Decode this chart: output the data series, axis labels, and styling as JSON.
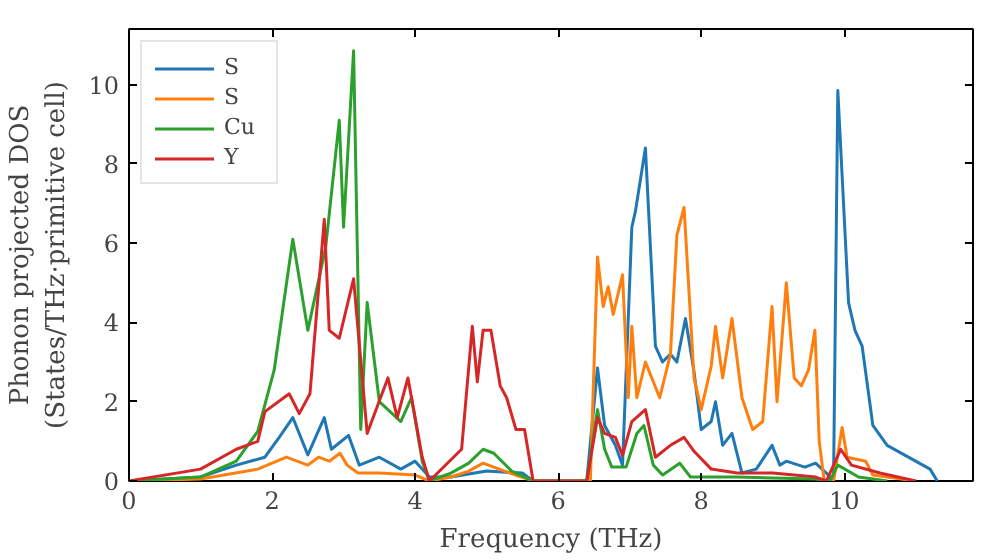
{
  "chart_data": {
    "type": "line",
    "xlabel": "Frequency (THz)",
    "ylabel": "Phonon projected DOS\n(States/THz·primitive cell)",
    "xlim": [
      0,
      11.8
    ],
    "ylim": [
      0,
      11.4
    ],
    "xticks": [
      0,
      2,
      4,
      6,
      8,
      10
    ],
    "yticks": [
      0,
      2,
      4,
      6,
      8,
      10
    ],
    "grid": false,
    "legend": "top left",
    "series": [
      {
        "name": "S",
        "color": "#1f77b4",
        "x": [
          0,
          1,
          1.5,
          1.9,
          2.1,
          2.29,
          2.5,
          2.73,
          2.83,
          3.07,
          3.22,
          3.5,
          3.8,
          4.0,
          4.2,
          4.5,
          5.0,
          5.5,
          5.65,
          6.4,
          6.55,
          6.65,
          6.8,
          6.9,
          7.03,
          7.08,
          7.22,
          7.36,
          7.46,
          7.57,
          7.66,
          7.78,
          7.9,
          8.0,
          8.14,
          8.2,
          8.3,
          8.43,
          8.57,
          8.77,
          8.99,
          9.1,
          9.19,
          9.45,
          9.6,
          9.75,
          9.85,
          9.91,
          10.06,
          10.15,
          10.25,
          10.4,
          10.6,
          11.2,
          11.3
        ],
        "values": [
          0,
          0.1,
          0.4,
          0.6,
          1.1,
          1.6,
          0.66,
          1.6,
          0.8,
          1.15,
          0.4,
          0.6,
          0.3,
          0.5,
          0.1,
          0.1,
          0.25,
          0.2,
          0,
          0,
          2.85,
          1.4,
          0.9,
          0.4,
          6.4,
          6.8,
          8.4,
          3.4,
          3.0,
          3.2,
          3.0,
          4.1,
          2.75,
          1.3,
          1.5,
          2.0,
          0.9,
          1.2,
          0.2,
          0.3,
          0.9,
          0.4,
          0.5,
          0.35,
          0.45,
          0.2,
          0,
          9.85,
          4.5,
          3.8,
          3.4,
          1.4,
          0.9,
          0.3,
          0
        ]
      },
      {
        "name": "S",
        "color": "#ff7f0e",
        "x": [
          0,
          1,
          1.8,
          2.2,
          2.5,
          2.65,
          2.8,
          2.95,
          3.05,
          3.2,
          3.5,
          4.0,
          4.2,
          4.5,
          4.75,
          4.95,
          5.25,
          5.65,
          6.45,
          6.55,
          6.63,
          6.7,
          6.77,
          6.9,
          6.98,
          7.03,
          7.1,
          7.22,
          7.42,
          7.57,
          7.66,
          7.76,
          7.9,
          8.0,
          8.14,
          8.2,
          8.3,
          8.43,
          8.57,
          8.72,
          8.86,
          8.99,
          9.06,
          9.19,
          9.3,
          9.4,
          9.5,
          9.59,
          9.65,
          9.72,
          9.85,
          9.97,
          10.04,
          10.3,
          10.4,
          11.0
        ],
        "values": [
          0,
          0.05,
          0.3,
          0.6,
          0.4,
          0.6,
          0.5,
          0.7,
          0.4,
          0.2,
          0.2,
          0.15,
          0,
          0.1,
          0.25,
          0.45,
          0.25,
          0,
          0,
          5.65,
          4.4,
          4.9,
          4.2,
          5.2,
          2.1,
          3.9,
          2.1,
          3.0,
          2.1,
          3.2,
          6.2,
          6.9,
          2.6,
          1.8,
          2.9,
          3.9,
          2.6,
          4.1,
          2.1,
          1.3,
          1.5,
          4.4,
          2.0,
          5.0,
          2.6,
          2.4,
          2.8,
          3.8,
          1.0,
          0,
          0,
          1.35,
          0.6,
          0.5,
          0.15,
          0
        ]
      },
      {
        "name": "Cu",
        "color": "#2ca02c",
        "x": [
          0,
          1,
          1.5,
          1.8,
          2.03,
          2.29,
          2.5,
          2.75,
          2.94,
          3.0,
          3.14,
          3.24,
          3.33,
          3.5,
          3.8,
          3.95,
          4.1,
          4.2,
          4.5,
          4.75,
          4.95,
          5.1,
          5.35,
          5.65,
          6.4,
          6.55,
          6.65,
          6.75,
          6.95,
          7.1,
          7.2,
          7.33,
          7.46,
          7.7,
          7.85,
          8.5,
          9.6,
          9.8,
          9.91,
          10.2,
          10.6
        ],
        "values": [
          0,
          0.1,
          0.5,
          1.25,
          2.8,
          6.1,
          3.8,
          5.9,
          9.1,
          6.4,
          10.85,
          1.3,
          4.5,
          2.0,
          1.5,
          2.1,
          0.5,
          0,
          0.2,
          0.45,
          0.8,
          0.7,
          0.25,
          0,
          0,
          1.8,
          0.8,
          0.35,
          0.35,
          1.2,
          1.4,
          0.4,
          0.15,
          0.45,
          0.1,
          0.1,
          0.05,
          0,
          0.4,
          0.1,
          0
        ]
      },
      {
        "name": "Y",
        "color": "#d62728",
        "x": [
          0,
          1,
          1.5,
          1.8,
          1.9,
          2.24,
          2.38,
          2.53,
          2.73,
          2.8,
          2.94,
          3.14,
          3.33,
          3.62,
          3.75,
          3.9,
          4.1,
          4.2,
          4.65,
          4.8,
          4.87,
          4.95,
          5.06,
          5.19,
          5.28,
          5.41,
          5.53,
          5.65,
          6.4,
          6.55,
          6.65,
          6.8,
          6.9,
          7.03,
          7.22,
          7.36,
          7.57,
          7.76,
          7.9,
          8.14,
          8.5,
          9.0,
          9.6,
          9.75,
          9.95,
          10.1,
          10.5,
          11.0
        ],
        "values": [
          0,
          0.3,
          0.8,
          1.0,
          1.75,
          2.2,
          1.7,
          2.2,
          6.6,
          3.8,
          3.6,
          5.1,
          1.2,
          2.6,
          1.6,
          2.6,
          0.6,
          0,
          0.8,
          3.9,
          2.5,
          3.8,
          3.8,
          2.4,
          2.1,
          1.3,
          1.3,
          0,
          0,
          1.6,
          1.2,
          1.1,
          0.65,
          1.5,
          1.8,
          0.6,
          0.9,
          1.1,
          0.75,
          0.3,
          0.2,
          0.2,
          0.1,
          0,
          0.8,
          0.4,
          0.2,
          0
        ]
      }
    ]
  }
}
